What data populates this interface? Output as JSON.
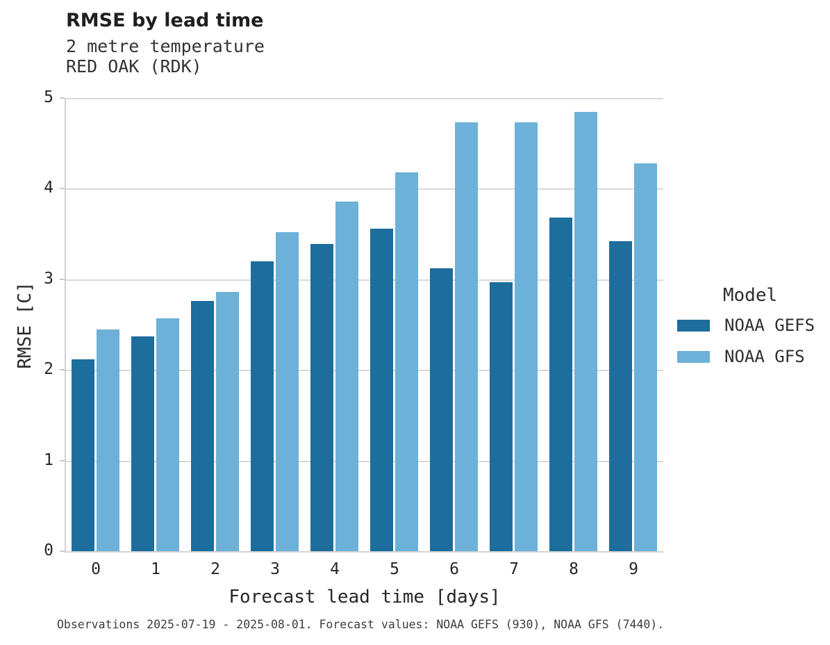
{
  "header": {
    "title": "RMSE by lead time",
    "subtitle_line1": "2 metre temperature",
    "subtitle_line2": "RED OAK (RDK)"
  },
  "chart_data": {
    "type": "bar",
    "title": "RMSE by lead time",
    "subtitle": [
      "2 metre temperature",
      "RED OAK (RDK)"
    ],
    "categories": [
      "0",
      "1",
      "2",
      "3",
      "4",
      "5",
      "6",
      "7",
      "8",
      "9"
    ],
    "series": [
      {
        "name": "NOAA GEFS",
        "color": "#1d6d9d",
        "values": [
          2.12,
          2.37,
          2.76,
          3.2,
          3.39,
          3.56,
          3.12,
          2.97,
          3.68,
          3.42
        ]
      },
      {
        "name": "NOAA GFS",
        "color": "#6db1d8",
        "values": [
          2.45,
          2.57,
          2.86,
          3.52,
          3.86,
          4.18,
          4.73,
          4.73,
          4.85,
          4.28
        ]
      }
    ],
    "xlabel": "Forecast lead time [days]",
    "ylabel": "RMSE [C]",
    "ylim": [
      0,
      5
    ],
    "yticks": [
      0,
      1,
      2,
      3,
      4,
      5
    ],
    "grid": true,
    "legend_title": "Model",
    "legend_position": "right"
  },
  "footer": {
    "caption": "Observations 2025-07-19 - 2025-08-01. Forecast values: NOAA GEFS (930), NOAA GFS (7440)."
  },
  "colors": {
    "bar_dark": "#1d6d9d",
    "bar_light": "#6db1d8",
    "gridline": "#d9d9d9",
    "spine": "#d1d1d1",
    "text": "#262626"
  }
}
